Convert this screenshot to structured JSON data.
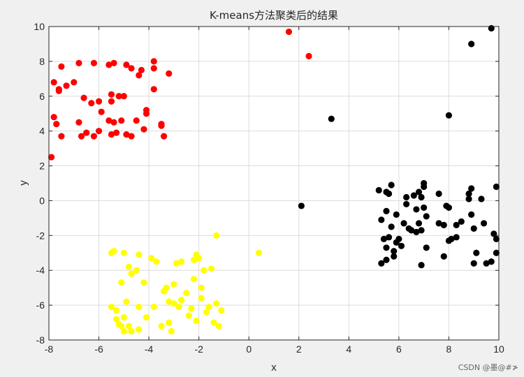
{
  "chart_data": {
    "type": "scatter",
    "title": "K-means方法聚类后的结果",
    "xlabel": "x",
    "ylabel": "y",
    "xlim": [
      -8,
      10
    ],
    "ylim": [
      -8,
      10
    ],
    "xticks": [
      -8,
      -6,
      -4,
      -2,
      0,
      2,
      4,
      6,
      8,
      10
    ],
    "yticks": [
      -8,
      -6,
      -4,
      -2,
      0,
      2,
      4,
      6,
      8,
      10
    ],
    "grid": true,
    "series": [
      {
        "color": "#ff0000",
        "points": [
          [
            -7.9,
            2.5
          ],
          [
            -7.8,
            6.8
          ],
          [
            -7.8,
            4.8
          ],
          [
            -7.7,
            4.4
          ],
          [
            -7.6,
            6.3
          ],
          [
            -7.6,
            6.4
          ],
          [
            -7.5,
            7.7
          ],
          [
            -7.5,
            3.7
          ],
          [
            -7.3,
            6.6
          ],
          [
            -7.0,
            6.8
          ],
          [
            -6.8,
            7.9
          ],
          [
            -6.8,
            4.5
          ],
          [
            -6.7,
            3.7
          ],
          [
            -6.6,
            5.9
          ],
          [
            -6.5,
            3.9
          ],
          [
            -6.3,
            5.6
          ],
          [
            -6.2,
            7.9
          ],
          [
            -6.2,
            3.7
          ],
          [
            -6.0,
            5.7
          ],
          [
            -6.0,
            4.0
          ],
          [
            -5.9,
            5.1
          ],
          [
            -5.6,
            7.8
          ],
          [
            -5.6,
            4.6
          ],
          [
            -5.5,
            6.1
          ],
          [
            -5.5,
            5.7
          ],
          [
            -5.5,
            3.8
          ],
          [
            -5.4,
            7.9
          ],
          [
            -5.4,
            4.5
          ],
          [
            -5.3,
            3.9
          ],
          [
            -5.2,
            6.0
          ],
          [
            -5.1,
            4.6
          ],
          [
            -5.0,
            6.0
          ],
          [
            -4.9,
            7.8
          ],
          [
            -4.9,
            3.8
          ],
          [
            -4.7,
            7.6
          ],
          [
            -4.7,
            3.7
          ],
          [
            -4.5,
            4.6
          ],
          [
            -4.4,
            7.2
          ],
          [
            -4.3,
            7.5
          ],
          [
            -4.2,
            4.1
          ],
          [
            -4.1,
            5.2
          ],
          [
            -4.1,
            5.0
          ],
          [
            -3.8,
            8.0
          ],
          [
            -3.8,
            7.6
          ],
          [
            -3.8,
            6.4
          ],
          [
            -3.5,
            4.4
          ],
          [
            -3.5,
            4.3
          ],
          [
            -3.4,
            3.7
          ],
          [
            -3.2,
            7.3
          ],
          [
            1.6,
            9.7
          ],
          [
            2.4,
            8.3
          ]
        ]
      },
      {
        "color": "#ffff00",
        "points": [
          [
            -5.5,
            -3.0
          ],
          [
            -5.4,
            -2.9
          ],
          [
            -5.5,
            -6.1
          ],
          [
            -5.3,
            -6.3
          ],
          [
            -5.3,
            -6.8
          ],
          [
            -5.2,
            -7.1
          ],
          [
            -5.1,
            -4.7
          ],
          [
            -5.1,
            -7.2
          ],
          [
            -5.0,
            -3.0
          ],
          [
            -5.0,
            -6.7
          ],
          [
            -5.0,
            -7.5
          ],
          [
            -4.9,
            -5.8
          ],
          [
            -4.8,
            -3.8
          ],
          [
            -4.8,
            -7.2
          ],
          [
            -4.7,
            -4.2
          ],
          [
            -4.7,
            -7.5
          ],
          [
            -4.5,
            -4.0
          ],
          [
            -4.4,
            -3.1
          ],
          [
            -4.4,
            -6.1
          ],
          [
            -4.4,
            -7.4
          ],
          [
            -4.2,
            -4.7
          ],
          [
            -4.1,
            -6.7
          ],
          [
            -3.9,
            -3.3
          ],
          [
            -3.8,
            -6.1
          ],
          [
            -3.7,
            -3.5
          ],
          [
            -3.5,
            -7.2
          ],
          [
            -3.4,
            -5.2
          ],
          [
            -3.3,
            -5.0
          ],
          [
            -3.2,
            -7.0
          ],
          [
            -3.2,
            -5.8
          ],
          [
            -3.1,
            -7.5
          ],
          [
            -3.0,
            -4.8
          ],
          [
            -3.0,
            -5.9
          ],
          [
            -2.9,
            -3.6
          ],
          [
            -2.8,
            -6.1
          ],
          [
            -2.7,
            -3.5
          ],
          [
            -2.7,
            -5.7
          ],
          [
            -2.5,
            -5.3
          ],
          [
            -2.4,
            -6.6
          ],
          [
            -2.3,
            -6.2
          ],
          [
            -2.2,
            -3.4
          ],
          [
            -2.2,
            -4.5
          ],
          [
            -2.1,
            -3.1
          ],
          [
            -2.1,
            -6.9
          ],
          [
            -2.0,
            -3.3
          ],
          [
            -1.9,
            -5.0
          ],
          [
            -1.9,
            -5.6
          ],
          [
            -1.8,
            -4.0
          ],
          [
            -1.7,
            -6.4
          ],
          [
            -1.6,
            -6.1
          ],
          [
            -1.5,
            -3.9
          ],
          [
            -1.4,
            -7.0
          ],
          [
            -1.3,
            -2.0
          ],
          [
            -1.3,
            -5.9
          ],
          [
            -1.2,
            -7.2
          ],
          [
            -1.1,
            -6.3
          ],
          [
            0.4,
            -3.0
          ]
        ]
      },
      {
        "color": "#000000",
        "points": [
          [
            2.1,
            -0.3
          ],
          [
            3.3,
            4.7
          ],
          [
            8.0,
            4.9
          ],
          [
            8.9,
            9.0
          ],
          [
            9.7,
            9.9
          ],
          [
            5.2,
            0.6
          ],
          [
            5.3,
            -1.1
          ],
          [
            5.3,
            -3.6
          ],
          [
            5.4,
            -2.2
          ],
          [
            5.5,
            0.5
          ],
          [
            5.5,
            -0.6
          ],
          [
            5.5,
            -2.7
          ],
          [
            5.5,
            -3.4
          ],
          [
            5.6,
            0.4
          ],
          [
            5.6,
            -2.1
          ],
          [
            5.7,
            0.9
          ],
          [
            5.7,
            -1.5
          ],
          [
            5.8,
            -2.9
          ],
          [
            5.8,
            -3.2
          ],
          [
            5.9,
            -0.8
          ],
          [
            5.9,
            -2.4
          ],
          [
            6.0,
            -2.2
          ],
          [
            6.1,
            -2.6
          ],
          [
            6.2,
            -1.3
          ],
          [
            6.3,
            0.2
          ],
          [
            6.3,
            -0.2
          ],
          [
            6.4,
            -1.6
          ],
          [
            6.5,
            -1.7
          ],
          [
            6.6,
            0.3
          ],
          [
            6.7,
            -0.5
          ],
          [
            6.7,
            -1.8
          ],
          [
            6.8,
            0.5
          ],
          [
            6.8,
            -1.3
          ],
          [
            6.9,
            0.2
          ],
          [
            6.9,
            -1.7
          ],
          [
            6.9,
            -3.7
          ],
          [
            7.0,
            1.0
          ],
          [
            7.0,
            0.8
          ],
          [
            7.0,
            -0.4
          ],
          [
            7.1,
            -0.9
          ],
          [
            7.1,
            -2.7
          ],
          [
            7.6,
            0.4
          ],
          [
            7.6,
            -1.3
          ],
          [
            7.8,
            -3.2
          ],
          [
            7.8,
            -1.4
          ],
          [
            7.9,
            -0.3
          ],
          [
            8.0,
            -0.4
          ],
          [
            8.0,
            -2.3
          ],
          [
            8.1,
            -2.2
          ],
          [
            8.3,
            -1.4
          ],
          [
            8.3,
            -2.1
          ],
          [
            8.5,
            -1.2
          ],
          [
            8.8,
            0.4
          ],
          [
            8.8,
            0.1
          ],
          [
            8.9,
            0.7
          ],
          [
            8.9,
            -0.8
          ],
          [
            9.0,
            -1.6
          ],
          [
            9.0,
            -3.6
          ],
          [
            9.1,
            -3.0
          ],
          [
            9.3,
            0.1
          ],
          [
            9.4,
            -1.3
          ],
          [
            9.5,
            -3.6
          ],
          [
            9.7,
            -3.5
          ],
          [
            9.8,
            -1.9
          ],
          [
            9.9,
            -2.2
          ],
          [
            9.9,
            -3.0
          ],
          [
            9.9,
            0.8
          ]
        ]
      }
    ]
  },
  "watermark": "CSDN @墨@#≯"
}
